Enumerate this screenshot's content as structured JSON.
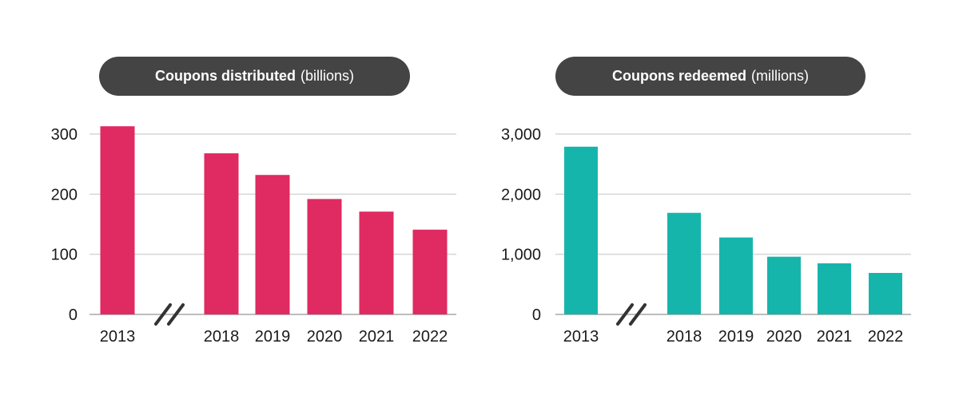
{
  "chart_data": [
    {
      "type": "bar",
      "title_bold": "Coupons distributed",
      "title_unit": "(billions)",
      "categories": [
        "2013",
        "2018",
        "2019",
        "2020",
        "2021",
        "2022"
      ],
      "values": [
        313,
        268,
        232,
        192,
        171,
        141
      ],
      "yticks": [
        "0",
        "100",
        "200",
        "300"
      ],
      "ylim": [
        0,
        300
      ],
      "grid": true,
      "axis_break": "between 2013 and 2018",
      "color": "#E02A62"
    },
    {
      "type": "bar",
      "title_bold": "Coupons redeemed",
      "title_unit": "(millions)",
      "categories": [
        "2013",
        "2018",
        "2019",
        "2020",
        "2021",
        "2022"
      ],
      "values": [
        2790,
        1690,
        1280,
        960,
        850,
        690
      ],
      "yticks": [
        "0",
        "1,000",
        "2,000",
        "3,000"
      ],
      "ylim": [
        0,
        3000
      ],
      "grid": true,
      "axis_break": "between 2013 and 2018",
      "color": "#16B5AC"
    }
  ]
}
